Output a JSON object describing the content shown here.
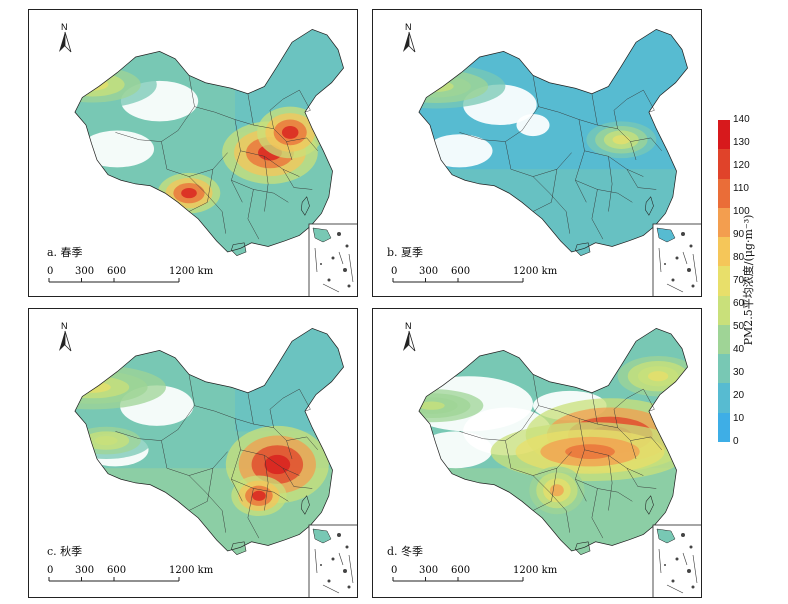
{
  "panels": [
    {
      "label": "a. 春季",
      "season": "spring"
    },
    {
      "label": "b. 夏季",
      "season": "summer"
    },
    {
      "label": "c. 秋季",
      "season": "autumn"
    },
    {
      "label": "d. 冬季",
      "season": "winter"
    }
  ],
  "north_label": "N",
  "scale": {
    "labels": [
      "0",
      "300",
      "600",
      "1200 km"
    ]
  },
  "legend": {
    "title": "PM2.5平均浓度/(μg·m⁻³)",
    "ticks": [
      "140",
      "130",
      "120",
      "110",
      "100",
      "90",
      "80",
      "70",
      "60",
      "50",
      "40",
      "30",
      "20",
      "10",
      "0"
    ],
    "colors": [
      "#d7191c",
      "#e0432a",
      "#ea6d38",
      "#f39e4f",
      "#f5c659",
      "#e8df6a",
      "#c9e07a",
      "#9fd496",
      "#78c8b4",
      "#57bbd1",
      "#3eaee6"
    ]
  }
}
